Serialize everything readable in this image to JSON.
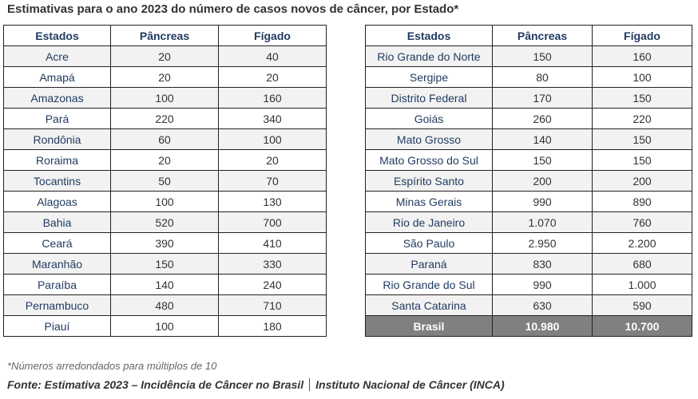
{
  "title": "Estimativas para o ano 2023 do número de casos novos de câncer, por Estado*",
  "headers": [
    "Estados",
    "Pâncreas",
    "Fígado"
  ],
  "left_rows": [
    [
      "Acre",
      "20",
      "40"
    ],
    [
      "Amapá",
      "20",
      "20"
    ],
    [
      "Amazonas",
      "100",
      "160"
    ],
    [
      "Pará",
      "220",
      "340"
    ],
    [
      "Rondônia",
      "60",
      "100"
    ],
    [
      "Roraima",
      "20",
      "20"
    ],
    [
      "Tocantins",
      "50",
      "70"
    ],
    [
      "Alagoas",
      "100",
      "130"
    ],
    [
      "Bahia",
      "520",
      "700"
    ],
    [
      "Ceará",
      "390",
      "410"
    ],
    [
      "Maranhão",
      "150",
      "330"
    ],
    [
      "Paraíba",
      "140",
      "240"
    ],
    [
      "Pernambuco",
      "480",
      "710"
    ],
    [
      "Piauí",
      "100",
      "180"
    ]
  ],
  "right_rows": [
    [
      "Rio Grande do Norte",
      "150",
      "160"
    ],
    [
      "Sergipe",
      "80",
      "100"
    ],
    [
      "Distrito Federal",
      "170",
      "150"
    ],
    [
      "Goiás",
      "260",
      "220"
    ],
    [
      "Mato Grosso",
      "140",
      "150"
    ],
    [
      "Mato Grosso do Sul",
      "150",
      "150"
    ],
    [
      "Espírito Santo",
      "200",
      "200"
    ],
    [
      "Minas Gerais",
      "990",
      "890"
    ],
    [
      "Rio de Janeiro",
      "1.070",
      "760"
    ],
    [
      "São Paulo",
      "2.950",
      "2.200"
    ],
    [
      "Paraná",
      "830",
      "680"
    ],
    [
      "Rio Grande do Sul",
      "990",
      "1.000"
    ],
    [
      "Santa Catarina",
      "630",
      "590"
    ]
  ],
  "total_row": [
    "Brasil",
    "10.980",
    "10.700"
  ],
  "note": "*Números arredondados para múltiplos de 10",
  "source_left": "Fonte:  Estimativa 2023 – Incidência de Câncer no Brasil",
  "source_right": "Instituto Nacional de Câncer (INCA)",
  "colors": {
    "header_text": "#1f3a5f",
    "row_alt": "#f2f2f2",
    "total_bg": "#808080"
  }
}
